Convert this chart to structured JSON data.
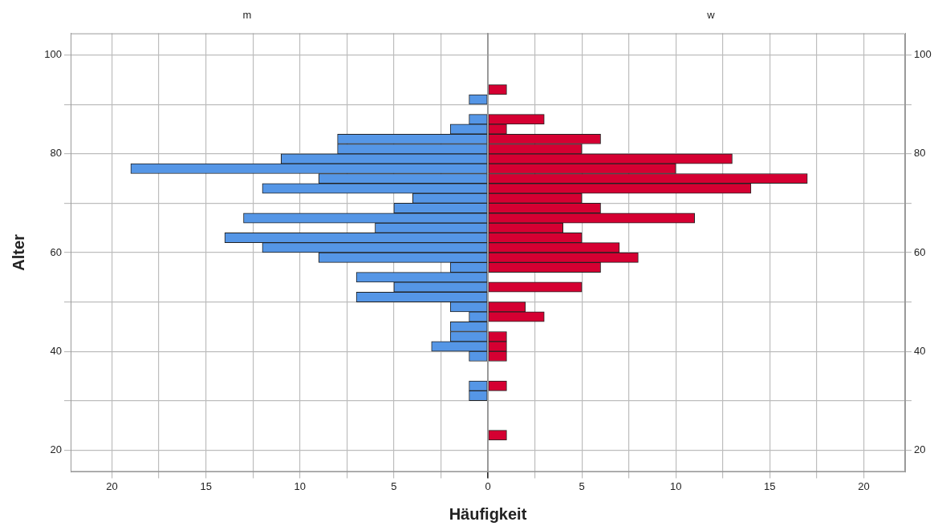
{
  "chart_data": [
    {
      "type": "histogram",
      "orientation": "horizontal",
      "title": "m",
      "ylabel": "Alter",
      "xlabel": "Häufigkeit",
      "color": "#5596e6",
      "grid": true,
      "bins": [
        22,
        24,
        26,
        28,
        30,
        32,
        34,
        36,
        38,
        40,
        42,
        44,
        46,
        48,
        50,
        52,
        54,
        56,
        58,
        60,
        62,
        64,
        66,
        68,
        70,
        72,
        74,
        76,
        78,
        80,
        82,
        84,
        86,
        88,
        90,
        92,
        94
      ],
      "values": [
        0,
        0,
        0,
        0,
        1,
        1,
        0,
        0,
        1,
        3,
        2,
        2,
        1,
        2,
        7,
        5,
        7,
        2,
        9,
        12,
        14,
        6,
        13,
        5,
        4,
        12,
        9,
        19,
        11,
        8,
        8,
        2,
        1,
        0,
        1,
        0
      ],
      "xlim": [
        22.2,
        0
      ],
      "xticks": [
        0,
        {
          "value": 2.5,
          "label": null
        },
        5,
        {
          "value": 7.5,
          "label": null
        },
        10,
        {
          "value": 12.5,
          "label": null
        },
        15,
        {
          "value": 17.5,
          "label": null
        },
        20
      ],
      "ylim": [
        15.6,
        104.4
      ],
      "yticks": [
        20,
        {
          "value": 30,
          "label": null
        },
        40,
        {
          "value": 50,
          "label": null
        },
        60,
        {
          "value": 70,
          "label": null
        },
        80,
        {
          "value": 90,
          "label": null
        },
        100
      ]
    },
    {
      "type": "histogram",
      "orientation": "horizontal",
      "title": "w",
      "color": "#d50032",
      "grid": true,
      "bins": [
        22,
        24,
        26,
        28,
        30,
        32,
        34,
        36,
        38,
        40,
        42,
        44,
        46,
        48,
        50,
        52,
        54,
        56,
        58,
        60,
        62,
        64,
        66,
        68,
        70,
        72,
        74,
        76,
        78,
        80,
        82,
        84,
        86,
        88,
        90,
        92,
        94
      ],
      "values": [
        1,
        0,
        0,
        0,
        0,
        1,
        0,
        0,
        1,
        1,
        1,
        0,
        3,
        2,
        0,
        5,
        0,
        6,
        8,
        7,
        5,
        4,
        11,
        6,
        5,
        14,
        17,
        10,
        13,
        5,
        6,
        1,
        3,
        0,
        0,
        1
      ],
      "xlim": [
        0,
        22.2
      ],
      "xticks": [
        {
          "value": 0,
          "label": null
        },
        {
          "value": 2.5,
          "label": null
        },
        5,
        {
          "value": 7.5,
          "label": null
        },
        10,
        {
          "value": 12.5,
          "label": null
        },
        15,
        {
          "value": 17.5,
          "label": null
        },
        20
      ],
      "ylim": [
        15.6,
        104.4
      ],
      "yticks": [
        20,
        {
          "value": 30,
          "label": null
        },
        40,
        {
          "value": 50,
          "label": null
        },
        60,
        {
          "value": 70,
          "label": null
        },
        80,
        {
          "value": 90,
          "label": null
        },
        100
      ]
    }
  ]
}
